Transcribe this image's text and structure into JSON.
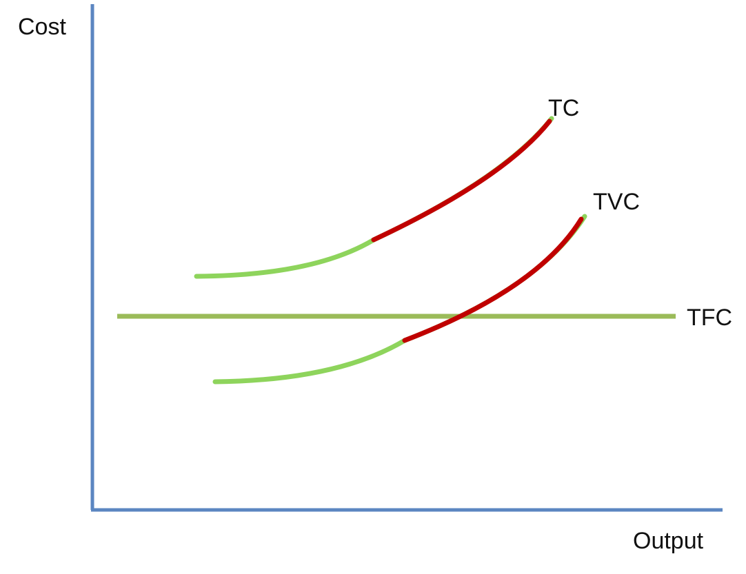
{
  "axes": {
    "y_label": "Cost",
    "x_label": "Output",
    "axis_color": "#5b86c1"
  },
  "curves": {
    "tc_label": "TC",
    "tvc_label": "TVC",
    "tfc_label": "TFC",
    "base_color": "#8ed45c",
    "highlight_color": "#c00000",
    "tfc_color": "#9bbb59"
  }
}
